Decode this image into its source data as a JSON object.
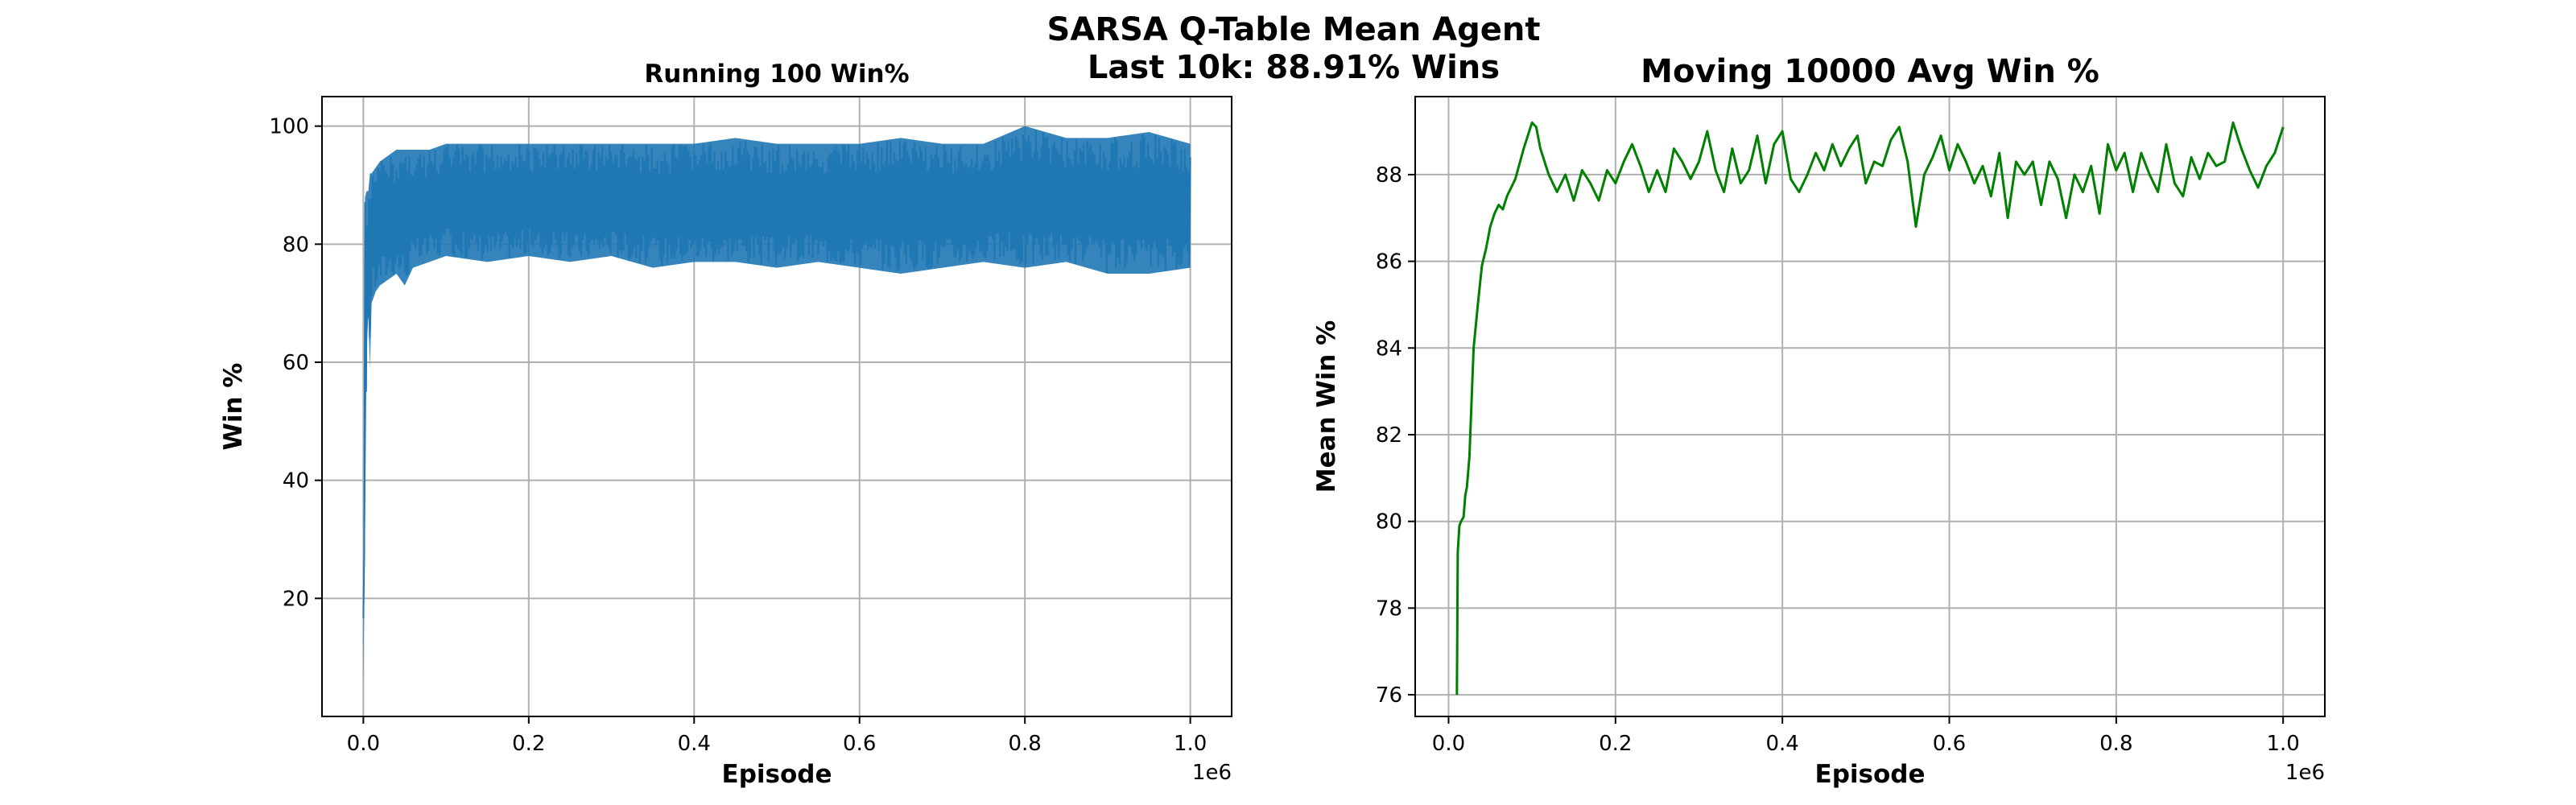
{
  "figure": {
    "suptitle_line1": "SARSA Q-Table Mean Agent",
    "suptitle_line2": "Last 10k: 88.91% Wins"
  },
  "chart_data": [
    {
      "type": "line",
      "title": "Running 100 Win%",
      "xlabel": "Episode",
      "ylabel": "Win %",
      "x_offset_label": "1e6",
      "xlim": [
        -0.05,
        1.05
      ],
      "ylim": [
        0,
        105
      ],
      "xticks": [
        0.0,
        0.2,
        0.4,
        0.6,
        0.8,
        1.0
      ],
      "xtick_labels": [
        "0.0",
        "0.2",
        "0.4",
        "0.6",
        "0.8",
        "1.0"
      ],
      "yticks": [
        20,
        40,
        60,
        80,
        100
      ],
      "ytick_labels": [
        "20",
        "40",
        "60",
        "80",
        "100"
      ],
      "grid": true,
      "color": "#1f77b4",
      "series": [
        {
          "x": [
            0.0,
            0.002,
            0.004,
            0.006,
            0.008,
            0.01,
            0.015,
            0.02,
            0.03,
            0.04,
            0.05,
            0.06,
            0.08,
            0.1,
            0.15,
            0.2,
            0.25,
            0.3,
            0.35,
            0.4,
            0.45,
            0.5,
            0.55,
            0.6,
            0.65,
            0.7,
            0.75,
            0.8,
            0.85,
            0.9,
            0.95,
            1.0
          ],
          "y_low": [
            5,
            30,
            62,
            68,
            59,
            70,
            72,
            73,
            74,
            75,
            73,
            76,
            77,
            78,
            77,
            78,
            77,
            78,
            76,
            77,
            77,
            76,
            77,
            76,
            75,
            76,
            77,
            76,
            77,
            75,
            75,
            76
          ],
          "y_high": [
            20,
            88,
            89,
            89,
            92,
            92,
            93,
            94,
            95,
            96,
            96,
            96,
            96,
            97,
            97,
            97,
            97,
            97,
            97,
            97,
            98,
            97,
            97,
            97,
            98,
            97,
            97,
            100,
            98,
            98,
            99,
            97
          ]
        }
      ]
    },
    {
      "type": "line",
      "title": "Moving 10000 Avg Win %",
      "xlabel": "Episode",
      "ylabel": "Mean Win %",
      "x_offset_label": "1e6",
      "xlim": [
        -0.04,
        1.05
      ],
      "ylim": [
        75.5,
        89.8
      ],
      "xticks": [
        0.0,
        0.2,
        0.4,
        0.6,
        0.8,
        1.0
      ],
      "xtick_labels": [
        "0.0",
        "0.2",
        "0.4",
        "0.6",
        "0.8",
        "1.0"
      ],
      "yticks": [
        76,
        78,
        80,
        82,
        84,
        86,
        88
      ],
      "ytick_labels": [
        "76",
        "78",
        "80",
        "82",
        "84",
        "86",
        "88"
      ],
      "grid": true,
      "color": "#008000",
      "series": [
        {
          "x": [
            0.01,
            0.011,
            0.013,
            0.015,
            0.018,
            0.02,
            0.022,
            0.025,
            0.028,
            0.03,
            0.035,
            0.04,
            0.045,
            0.05,
            0.055,
            0.06,
            0.065,
            0.07,
            0.08,
            0.09,
            0.1,
            0.105,
            0.11,
            0.12,
            0.13,
            0.14,
            0.15,
            0.16,
            0.17,
            0.18,
            0.19,
            0.2,
            0.21,
            0.22,
            0.23,
            0.24,
            0.25,
            0.26,
            0.27,
            0.28,
            0.29,
            0.3,
            0.31,
            0.32,
            0.33,
            0.34,
            0.35,
            0.36,
            0.37,
            0.38,
            0.39,
            0.4,
            0.41,
            0.42,
            0.43,
            0.44,
            0.45,
            0.46,
            0.47,
            0.48,
            0.49,
            0.5,
            0.51,
            0.52,
            0.53,
            0.54,
            0.55,
            0.56,
            0.57,
            0.58,
            0.59,
            0.6,
            0.61,
            0.62,
            0.63,
            0.64,
            0.65,
            0.66,
            0.67,
            0.68,
            0.69,
            0.7,
            0.71,
            0.72,
            0.73,
            0.74,
            0.75,
            0.76,
            0.77,
            0.78,
            0.79,
            0.8,
            0.81,
            0.82,
            0.83,
            0.84,
            0.85,
            0.86,
            0.87,
            0.88,
            0.89,
            0.9,
            0.91,
            0.92,
            0.93,
            0.94,
            0.95,
            0.96,
            0.97,
            0.98,
            0.99,
            1.0
          ],
          "y": [
            76.0,
            79.3,
            79.9,
            80.0,
            80.1,
            80.6,
            80.8,
            81.5,
            83.0,
            84.0,
            85.0,
            85.9,
            86.3,
            86.8,
            87.1,
            87.3,
            87.2,
            87.5,
            87.9,
            88.6,
            89.2,
            89.1,
            88.6,
            88.0,
            87.6,
            88.0,
            87.4,
            88.1,
            87.8,
            87.4,
            88.1,
            87.8,
            88.3,
            88.7,
            88.2,
            87.6,
            88.1,
            87.6,
            88.6,
            88.3,
            87.9,
            88.3,
            89.0,
            88.1,
            87.6,
            88.6,
            87.8,
            88.1,
            88.9,
            87.8,
            88.7,
            89.0,
            87.9,
            87.6,
            88.0,
            88.5,
            88.1,
            88.7,
            88.2,
            88.6,
            88.9,
            87.8,
            88.3,
            88.2,
            88.8,
            89.1,
            88.3,
            86.8,
            88.0,
            88.4,
            88.9,
            88.1,
            88.7,
            88.3,
            87.8,
            88.2,
            87.5,
            88.5,
            87.0,
            88.3,
            88.0,
            88.3,
            87.3,
            88.3,
            87.9,
            87.0,
            88.0,
            87.6,
            88.2,
            87.1,
            88.7,
            88.1,
            88.5,
            87.6,
            88.5,
            88.0,
            87.6,
            88.7,
            87.8,
            87.5,
            88.4,
            87.9,
            88.5,
            88.2,
            88.3,
            89.2,
            88.6,
            88.1,
            87.7,
            88.2,
            88.5,
            89.1
          ]
        }
      ]
    }
  ]
}
